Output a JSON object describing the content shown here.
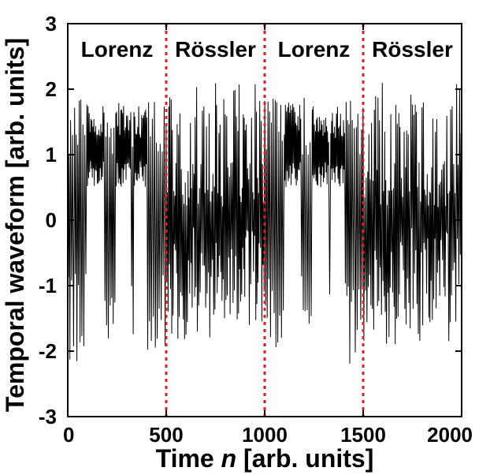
{
  "chart_data": {
    "type": "line",
    "xlabel": "Time n [arb. units]",
    "xlabel_parts": [
      "Time ",
      "n",
      " [arb. units]"
    ],
    "ylabel": "Temporal waveform [arb. units]",
    "xlim": [
      0,
      2000
    ],
    "ylim": [
      -3,
      3
    ],
    "x_ticks": [
      0,
      500,
      1000,
      1500,
      2000
    ],
    "y_ticks": [
      -3,
      -2,
      -1,
      0,
      1,
      2,
      3
    ],
    "grid": false,
    "line_color": "#000000",
    "divider_color": "#e02020",
    "dividers": [
      500,
      1000,
      1500
    ],
    "regions": [
      {
        "label": "Lorenz",
        "x_center": 250,
        "x_start": 0,
        "x_end": 500
      },
      {
        "label": "Rössler",
        "x_center": 750,
        "x_start": 500,
        "x_end": 1000
      },
      {
        "label": "Lorenz",
        "x_center": 1250,
        "x_start": 1000,
        "x_end": 1500
      },
      {
        "label": "Rössler",
        "x_center": 1750,
        "x_start": 1500,
        "x_end": 2000
      }
    ],
    "series": [
      {
        "style": "oscillating waveform",
        "lorenz_envelope": {
          "upper": 1.9,
          "lower": -2.2,
          "lobe_level": 1.1
        },
        "rossler_envelope": {
          "upper": 2.1,
          "lower": -1.9,
          "inner_level": 0.7
        }
      }
    ]
  }
}
